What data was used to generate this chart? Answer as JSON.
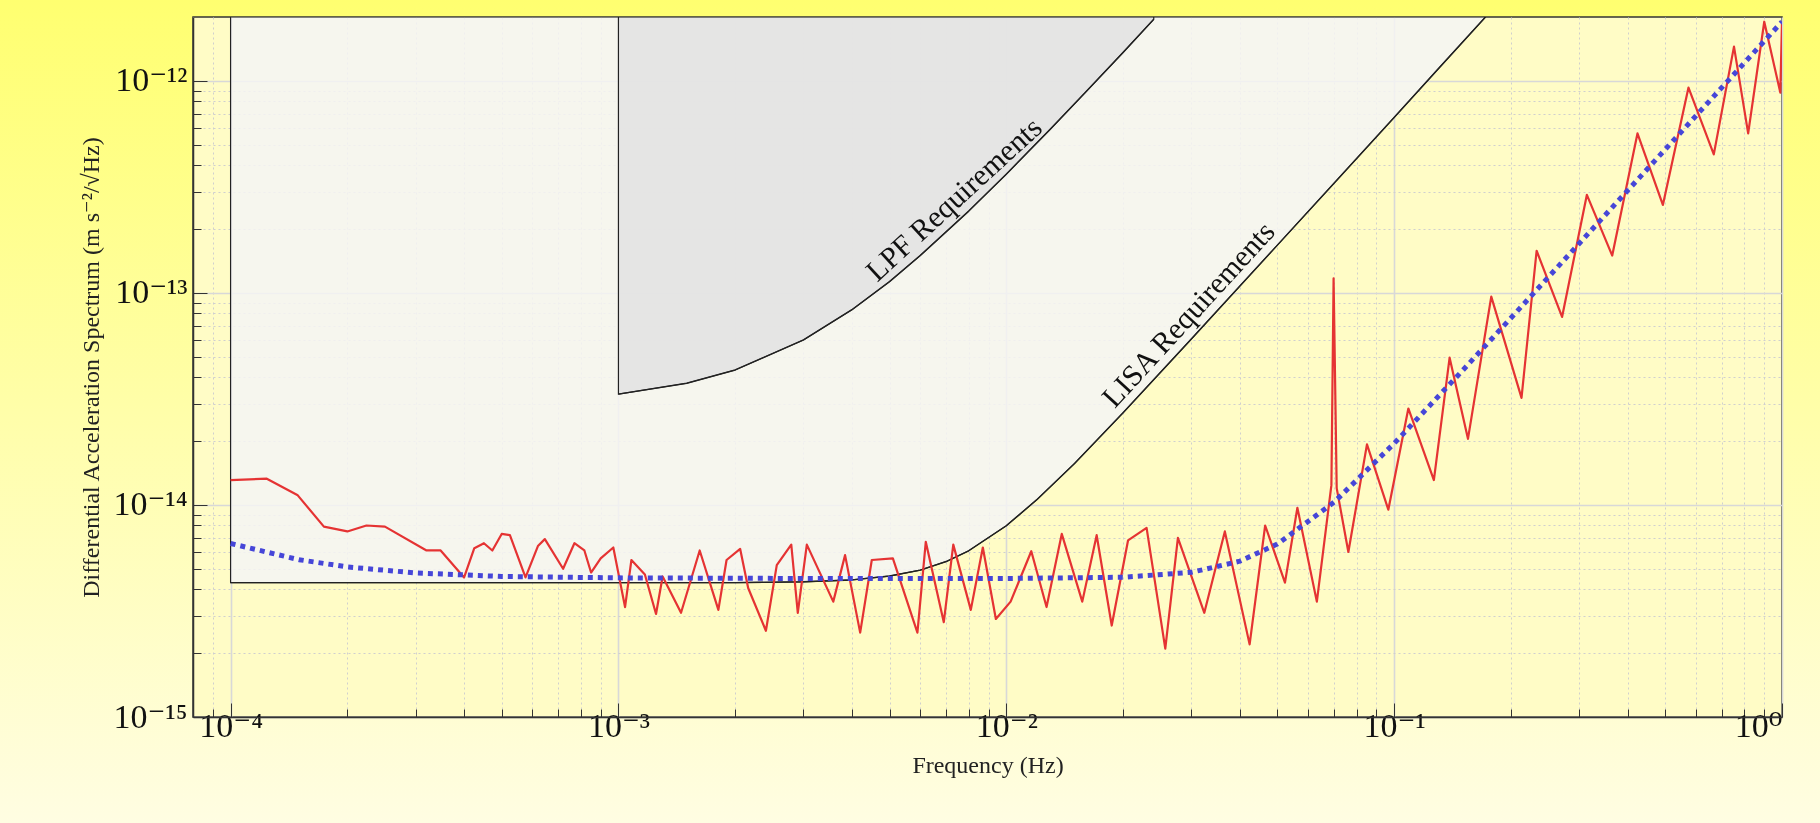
{
  "chart_data": {
    "type": "line",
    "xlabel": "Frequency (Hz)",
    "ylabel": "Differential Acceleration Spectrum (m s⁻²/√Hz)",
    "log": "xy",
    "grid": true,
    "xlim": [
      8e-05,
      1
    ],
    "ylim": [
      1e-15,
      2e-12
    ],
    "xticks": [
      {
        "value": 8e-05,
        "label": null
      },
      {
        "value": 9e-05,
        "label": null
      },
      {
        "value": 0.0001,
        "label": "10⁻⁴"
      },
      {
        "value": 0.0002,
        "label": null
      },
      {
        "value": 0.0003,
        "label": null
      },
      {
        "value": 0.0004,
        "label": null
      },
      {
        "value": 0.0005,
        "label": null
      },
      {
        "value": 0.0006,
        "label": null
      },
      {
        "value": 0.0007,
        "label": null
      },
      {
        "value": 0.0008,
        "label": null
      },
      {
        "value": 0.0009,
        "label": null
      },
      {
        "value": 0.001,
        "label": "10⁻³"
      },
      {
        "value": 0.002,
        "label": null
      },
      {
        "value": 0.003,
        "label": null
      },
      {
        "value": 0.004,
        "label": null
      },
      {
        "value": 0.005,
        "label": null
      },
      {
        "value": 0.006,
        "label": null
      },
      {
        "value": 0.007,
        "label": null
      },
      {
        "value": 0.008,
        "label": null
      },
      {
        "value": 0.009,
        "label": null
      },
      {
        "value": 0.01,
        "label": "10⁻²"
      },
      {
        "value": 0.02,
        "label": null
      },
      {
        "value": 0.03,
        "label": null
      },
      {
        "value": 0.04,
        "label": null
      },
      {
        "value": 0.05,
        "label": null
      },
      {
        "value": 0.06,
        "label": null
      },
      {
        "value": 0.07,
        "label": null
      },
      {
        "value": 0.08,
        "label": null
      },
      {
        "value": 0.09,
        "label": null
      },
      {
        "value": 0.1,
        "label": "10⁻¹"
      },
      {
        "value": 0.2,
        "label": null
      },
      {
        "value": 0.3,
        "label": null
      },
      {
        "value": 0.4,
        "label": null
      },
      {
        "value": 0.5,
        "label": null
      },
      {
        "value": 0.6,
        "label": null
      },
      {
        "value": 0.7,
        "label": null
      },
      {
        "value": 0.8,
        "label": null
      },
      {
        "value": 0.9,
        "label": null
      },
      {
        "value": 1,
        "label": "10⁰"
      }
    ],
    "yticks": [
      {
        "value": 1e-15,
        "label": "10⁻¹⁵"
      },
      {
        "value": 2e-15,
        "label": null
      },
      {
        "value": 3e-15,
        "label": null
      },
      {
        "value": 4e-15,
        "label": null
      },
      {
        "value": 5e-15,
        "label": null
      },
      {
        "value": 6e-15,
        "label": null
      },
      {
        "value": 7e-15,
        "label": null
      },
      {
        "value": 8e-15,
        "label": null
      },
      {
        "value": 9e-15,
        "label": null
      },
      {
        "value": 1e-14,
        "label": "10⁻¹⁴"
      },
      {
        "value": 2e-14,
        "label": null
      },
      {
        "value": 3e-14,
        "label": null
      },
      {
        "value": 4e-14,
        "label": null
      },
      {
        "value": 5e-14,
        "label": null
      },
      {
        "value": 6e-14,
        "label": null
      },
      {
        "value": 7e-14,
        "label": null
      },
      {
        "value": 8e-14,
        "label": null
      },
      {
        "value": 9e-14,
        "label": null
      },
      {
        "value": 1e-13,
        "label": "10⁻¹³"
      },
      {
        "value": 2e-13,
        "label": null
      },
      {
        "value": 3e-13,
        "label": null
      },
      {
        "value": 4e-13,
        "label": null
      },
      {
        "value": 5e-13,
        "label": null
      },
      {
        "value": 6e-13,
        "label": null
      },
      {
        "value": 7e-13,
        "label": null
      },
      {
        "value": 8e-13,
        "label": null
      },
      {
        "value": 9e-13,
        "label": null
      },
      {
        "value": 1e-12,
        "label": "10⁻¹²"
      }
    ],
    "series": [
      {
        "name": "LISA Requirements",
        "color": "#222222",
        "x": [
          0.0001,
          0.001,
          0.002,
          0.003,
          0.004,
          0.005,
          0.006,
          0.007,
          0.008,
          0.01,
          0.012,
          0.015,
          0.02,
          0.03,
          0.05,
          0.07,
          0.1,
          0.13,
          0.172
        ],
        "values": [
          4.3e-15,
          4.3e-15,
          4.3e-15,
          4.34e-15,
          4.43e-15,
          4.62e-15,
          4.93e-15,
          5.41e-15,
          6.08e-15,
          7.98e-15,
          1.06e-14,
          1.57e-14,
          2.72e-14,
          6.06e-14,
          1.68e-13,
          3.29e-13,
          6.72e-13,
          1.14e-12,
          2e-12
        ],
        "lower": [
          4.3e-15,
          4.3e-15,
          4.3e-15,
          4.34e-15,
          4.43e-15,
          4.62e-15,
          4.93e-15,
          5.41e-15,
          6.08e-15,
          7.98e-15,
          1.06e-14,
          1.57e-14,
          2.72e-14,
          6.06e-14,
          1.68e-13,
          3.29e-13,
          6.72e-13,
          1.14e-12,
          2e-12
        ],
        "upper": [
          2e-12,
          2e-12,
          2e-12,
          2e-12,
          2e-12,
          2e-12,
          2e-12,
          2e-12,
          2e-12,
          2e-12,
          2e-12,
          2e-12,
          2e-12,
          2e-12,
          2e-12,
          2e-12,
          2e-12,
          2e-12,
          2e-12
        ]
      },
      {
        "name": "LPF Requirements",
        "color": "#222222",
        "x": [
          0.001,
          0.0015,
          0.002,
          0.003,
          0.004,
          0.005,
          0.006,
          0.008,
          0.01,
          0.013,
          0.016,
          0.02,
          0.024
        ],
        "values": [
          3.33e-14,
          3.75e-14,
          4.33e-14,
          6e-14,
          8.33e-14,
          1.13e-13,
          1.5e-13,
          2.43e-13,
          3.63e-13,
          5.93e-13,
          8.83e-13,
          1.36e-12,
          1.95e-12
        ],
        "lower": [
          3.33e-14,
          3.75e-14,
          4.33e-14,
          6e-14,
          8.33e-14,
          1.13e-13,
          1.5e-13,
          2.43e-13,
          3.63e-13,
          5.93e-13,
          8.83e-13,
          1.36e-12,
          1.95e-12
        ],
        "upper": [
          2e-12,
          2e-12,
          2e-12,
          2e-12,
          2e-12,
          2e-12,
          2e-12,
          2e-12,
          2e-12,
          2e-12,
          2e-12,
          2e-12,
          2e-12
        ]
      },
      {
        "color": "#e53333",
        "x": [
          0.0001,
          0.000124,
          0.000149,
          0.000174,
          0.0002,
          0.000224,
          0.00025,
          0.00032,
          0.000348,
          0.0004,
          0.000425,
          0.00045,
          0.000473,
          0.0005,
          0.000525,
          0.000576,
          0.00062,
          0.000646,
          0.00072,
          0.00077,
          0.000817,
          0.00085,
          0.0009,
          0.00097,
          0.00104,
          0.00108,
          0.00117,
          0.00125,
          0.0013,
          0.00145,
          0.00162,
          0.00181,
          0.0019,
          0.00206,
          0.00216,
          0.0024,
          0.00256,
          0.00279,
          0.0029,
          0.00306,
          0.00358,
          0.00384,
          0.0042,
          0.0045,
          0.0051,
          0.0059,
          0.0062,
          0.0069,
          0.0073,
          0.0081,
          0.0087,
          0.0094,
          0.01026,
          0.0116,
          0.0127,
          0.0139,
          0.0157,
          0.0171,
          0.0187,
          0.0206,
          0.023,
          0.0257,
          0.0277,
          0.0324,
          0.0366,
          0.0424,
          0.0465,
          0.0523,
          0.0563,
          0.0632,
          0.0689,
          0.0698,
          0.0711,
          0.0762,
          0.0851,
          0.0966,
          0.1088,
          0.1266,
          0.139,
          0.155,
          0.178,
          0.213,
          0.233,
          0.271,
          0.314,
          0.365,
          0.424,
          0.493,
          0.574,
          0.667,
          0.752,
          0.818,
          0.9,
          0.99,
          1
        ],
        "values": [
          1.31e-14,
          1.33e-14,
          1.11e-14,
          7.9e-15,
          7.5e-15,
          8e-15,
          7.9e-15,
          6.1e-15,
          6.1e-15,
          4.55e-15,
          6.25e-15,
          6.6e-15,
          6.1e-15,
          7.3e-15,
          7.2e-15,
          4.55e-15,
          6.4e-15,
          6.9e-15,
          5e-15,
          6.6e-15,
          6.1e-15,
          4.8e-15,
          5.6e-15,
          6.3e-15,
          3.3e-15,
          5.5e-15,
          4.7e-15,
          3.06e-15,
          4.6e-15,
          3.1e-15,
          6.1e-15,
          3.2e-15,
          5.5e-15,
          6.2e-15,
          4.06e-15,
          2.55e-15,
          5.2e-15,
          6.5e-15,
          3.1e-15,
          6.5e-15,
          3.5e-15,
          5.8e-15,
          2.5e-15,
          5.5e-15,
          5.6e-15,
          2.5e-15,
          6.7e-15,
          2.8e-15,
          6.5e-15,
          3.2e-15,
          6.3e-15,
          2.9e-15,
          3.5e-15,
          6.05e-15,
          3.3e-15,
          7.3e-15,
          3.5e-15,
          7.2e-15,
          2.7e-15,
          6.8e-15,
          7.8e-15,
          2.1e-15,
          7e-15,
          3.1e-15,
          7.5e-15,
          2.2e-15,
          8e-15,
          4.3e-15,
          9.7e-15,
          3.5e-15,
          1.24e-14,
          1.17e-13,
          1.2e-14,
          6e-15,
          1.93e-14,
          9.5e-15,
          2.85e-14,
          1.31e-14,
          4.95e-14,
          2.05e-14,
          9.6e-14,
          3.2e-14,
          1.58e-13,
          7.7e-14,
          2.9e-13,
          1.5e-13,
          5.65e-13,
          2.6e-13,
          9.3e-13,
          4.5e-13,
          1.45e-12,
          5.65e-13,
          1.9e-12,
          8.8e-13,
          1.9e-12
        ]
      },
      {
        "color": "#4646d8",
        "line_style": "dotted",
        "x": [
          0.0001,
          0.00015,
          0.0002,
          0.0003,
          0.0005,
          0.001,
          0.003,
          0.01,
          0.02,
          0.03,
          0.04,
          0.05,
          0.07,
          0.1,
          0.15,
          0.2,
          0.3,
          0.5,
          0.7,
          1
        ],
        "values": [
          6.58e-15,
          5.52e-15,
          5.1e-15,
          4.78e-15,
          4.6e-15,
          4.53e-15,
          4.5e-15,
          4.5e-15,
          4.56e-15,
          4.81e-15,
          5.43e-15,
          6.54e-15,
          1.03e-14,
          1.95e-14,
          4.3e-14,
          7.61e-14,
          1.71e-13,
          4.75e-13,
          9.31e-13,
          1.9e-12
        ]
      }
    ]
  }
}
